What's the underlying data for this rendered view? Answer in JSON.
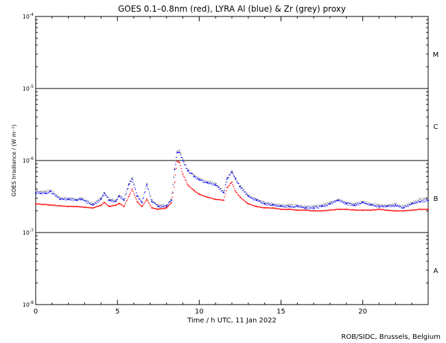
{
  "chart_data": {
    "type": "scatter",
    "title": "GOES 0.1–0.8nm (red), LYRA Al (blue) & Zr (grey) proxy",
    "xlabel": "Time / h UTC, 11 Jan 2022",
    "ylabel": "GOES Irradiance / (W m⁻²)",
    "xlim": [
      0,
      24
    ],
    "ylim": [
      1e-08,
      0.0001
    ],
    "y_scale": "log",
    "x_ticks": [
      0,
      5,
      10,
      15,
      20
    ],
    "x_tick_labels": [
      "0",
      "5",
      "10",
      "15",
      "20"
    ],
    "y_ticks": [
      1e-08,
      1e-07,
      1e-06,
      1e-05,
      0.0001
    ],
    "y_tick_labels": [
      {
        "base": "10",
        "exp": "-8"
      },
      {
        "base": "10",
        "exp": "-7"
      },
      {
        "base": "10",
        "exp": "-6"
      },
      {
        "base": "10",
        "exp": "-5"
      },
      {
        "base": "10",
        "exp": "-4"
      }
    ],
    "flare_class_lines": [
      1e-07,
      1e-06,
      1e-05
    ],
    "flare_classes": [
      {
        "label": "A",
        "y": 3e-08
      },
      {
        "label": "B",
        "y": 3e-07
      },
      {
        "label": "C",
        "y": 3e-06
      },
      {
        "label": "M",
        "y": 3e-05
      }
    ],
    "series": [
      {
        "name": "GOES 0.1–0.8nm",
        "color": "#ff0000",
        "x": [
          0,
          0.5,
          1,
          1.5,
          2,
          2.5,
          3,
          3.5,
          4,
          4.2,
          4.5,
          4.9,
          5.1,
          5.4,
          5.7,
          5.9,
          6.2,
          6.5,
          6.8,
          7.1,
          7.5,
          8,
          8.3,
          8.5,
          8.65,
          8.8,
          9,
          9.3,
          9.7,
          10,
          10.5,
          11,
          11.5,
          11.7,
          12,
          12.2,
          12.5,
          13,
          13.5,
          14,
          14.5,
          15,
          15.5,
          16,
          16.5,
          17,
          17.5,
          18,
          18.5,
          19,
          19.5,
          20,
          20.5,
          21,
          21.5,
          22,
          22.5,
          23,
          23.5,
          24
        ],
        "y": [
          2.5e-07,
          2.45e-07,
          2.4e-07,
          2.35e-07,
          2.3e-07,
          2.3e-07,
          2.25e-07,
          2.2e-07,
          2.4e-07,
          2.6e-07,
          2.3e-07,
          2.4e-07,
          2.55e-07,
          2.3e-07,
          3.2e-07,
          4e-07,
          2.7e-07,
          2.3e-07,
          2.9e-07,
          2.2e-07,
          2.1e-07,
          2.2e-07,
          2.6e-07,
          5e-07,
          9.8e-07,
          9.3e-07,
          6.5e-07,
          4.6e-07,
          3.8e-07,
          3.4e-07,
          3.1e-07,
          2.9e-07,
          2.8e-07,
          4.2e-07,
          5e-07,
          3.8e-07,
          3.1e-07,
          2.5e-07,
          2.3e-07,
          2.2e-07,
          2.2e-07,
          2.1e-07,
          2.1e-07,
          2.05e-07,
          2.05e-07,
          2e-07,
          2e-07,
          2.05e-07,
          2.1e-07,
          2.1e-07,
          2.05e-07,
          2.05e-07,
          2.05e-07,
          2.1e-07,
          2.05e-07,
          2e-07,
          2e-07,
          2.05e-07,
          2.1e-07,
          2.1e-07
        ]
      },
      {
        "name": "LYRA Al",
        "color": "#0000ff",
        "x": [
          0,
          0.3,
          0.6,
          0.9,
          1.5,
          2,
          2.5,
          2.8,
          3.5,
          4,
          4.2,
          4.5,
          4.9,
          5.1,
          5.4,
          5.7,
          5.9,
          6.2,
          6.5,
          6.8,
          7.1,
          7.5,
          8,
          8.3,
          8.5,
          8.65,
          8.8,
          9,
          9.3,
          9.7,
          10,
          10.5,
          11,
          11.5,
          11.7,
          12,
          12.2,
          12.5,
          13,
          13.5,
          14,
          14.5,
          15,
          15.5,
          16,
          16.5,
          17,
          17.5,
          18,
          18.5,
          19,
          19.5,
          20,
          20.5,
          21,
          21.5,
          22,
          22.5,
          23,
          23.5,
          24
        ],
        "y": [
          3.6e-07,
          3.5e-07,
          3.5e-07,
          3.7e-07,
          2.9e-07,
          2.9e-07,
          2.8e-07,
          2.9e-07,
          2.4e-07,
          2.9e-07,
          3.5e-07,
          2.8e-07,
          2.7e-07,
          3.2e-07,
          2.8e-07,
          4.6e-07,
          5.5e-07,
          3.2e-07,
          2.6e-07,
          4.6e-07,
          2.7e-07,
          2.3e-07,
          2.3e-07,
          2.8e-07,
          7.5e-07,
          1.28e-06,
          1.3e-06,
          1e-06,
          7.2e-07,
          6e-07,
          5.4e-07,
          4.9e-07,
          4.6e-07,
          3.6e-07,
          5.5e-07,
          6.9e-07,
          5.6e-07,
          4.3e-07,
          3.2e-07,
          2.8e-07,
          2.5e-07,
          2.4e-07,
          2.3e-07,
          2.3e-07,
          2.3e-07,
          2.2e-07,
          2.2e-07,
          2.3e-07,
          2.5e-07,
          2.8e-07,
          2.5e-07,
          2.4e-07,
          2.6e-07,
          2.4e-07,
          2.3e-07,
          2.3e-07,
          2.4e-07,
          2.2e-07,
          2.5e-07,
          2.7e-07,
          2.8e-07
        ]
      },
      {
        "name": "Zr",
        "color": "#8c8c8c",
        "x": [
          0,
          0.3,
          0.6,
          0.9,
          1.5,
          2,
          2.5,
          2.8,
          3.5,
          4,
          4.2,
          4.5,
          4.9,
          5.1,
          5.4,
          5.7,
          5.9,
          6.2,
          6.5,
          6.8,
          7.1,
          7.5,
          8,
          8.3,
          8.5,
          8.65,
          8.8,
          9,
          9.3,
          9.7,
          10,
          10.5,
          11,
          11.5,
          11.7,
          12,
          12.2,
          12.5,
          13,
          13.5,
          14,
          14.5,
          15,
          15.5,
          16,
          16.5,
          17,
          17.5,
          18,
          18.5,
          19,
          19.5,
          20,
          20.5,
          21,
          21.5,
          22,
          22.5,
          23,
          23.5,
          24
        ],
        "y": [
          3.8e-07,
          3.7e-07,
          3.7e-07,
          3.9e-07,
          3e-07,
          3e-07,
          2.9e-07,
          3e-07,
          2.5e-07,
          3e-07,
          3.6e-07,
          2.9e-07,
          2.8e-07,
          3.3e-07,
          2.9e-07,
          4.8e-07,
          5.8e-07,
          3.3e-07,
          2.7e-07,
          4.8e-07,
          2.8e-07,
          2.4e-07,
          2.4e-07,
          2.9e-07,
          7.8e-07,
          1.35e-06,
          1.38e-06,
          1.05e-06,
          7.5e-07,
          6.2e-07,
          5.6e-07,
          5.1e-07,
          4.8e-07,
          3.7e-07,
          5.8e-07,
          7.2e-07,
          5.8e-07,
          4.5e-07,
          3.3e-07,
          2.9e-07,
          2.6e-07,
          2.5e-07,
          2.4e-07,
          2.4e-07,
          2.4e-07,
          2.3e-07,
          2.3e-07,
          2.4e-07,
          2.6e-07,
          2.9e-07,
          2.6e-07,
          2.5e-07,
          2.7e-07,
          2.5e-07,
          2.4e-07,
          2.4e-07,
          2.5e-07,
          2.3e-07,
          2.6e-07,
          2.9e-07,
          3e-07
        ]
      }
    ],
    "credit": "ROB/SIDC, Brussels, Belgium"
  }
}
